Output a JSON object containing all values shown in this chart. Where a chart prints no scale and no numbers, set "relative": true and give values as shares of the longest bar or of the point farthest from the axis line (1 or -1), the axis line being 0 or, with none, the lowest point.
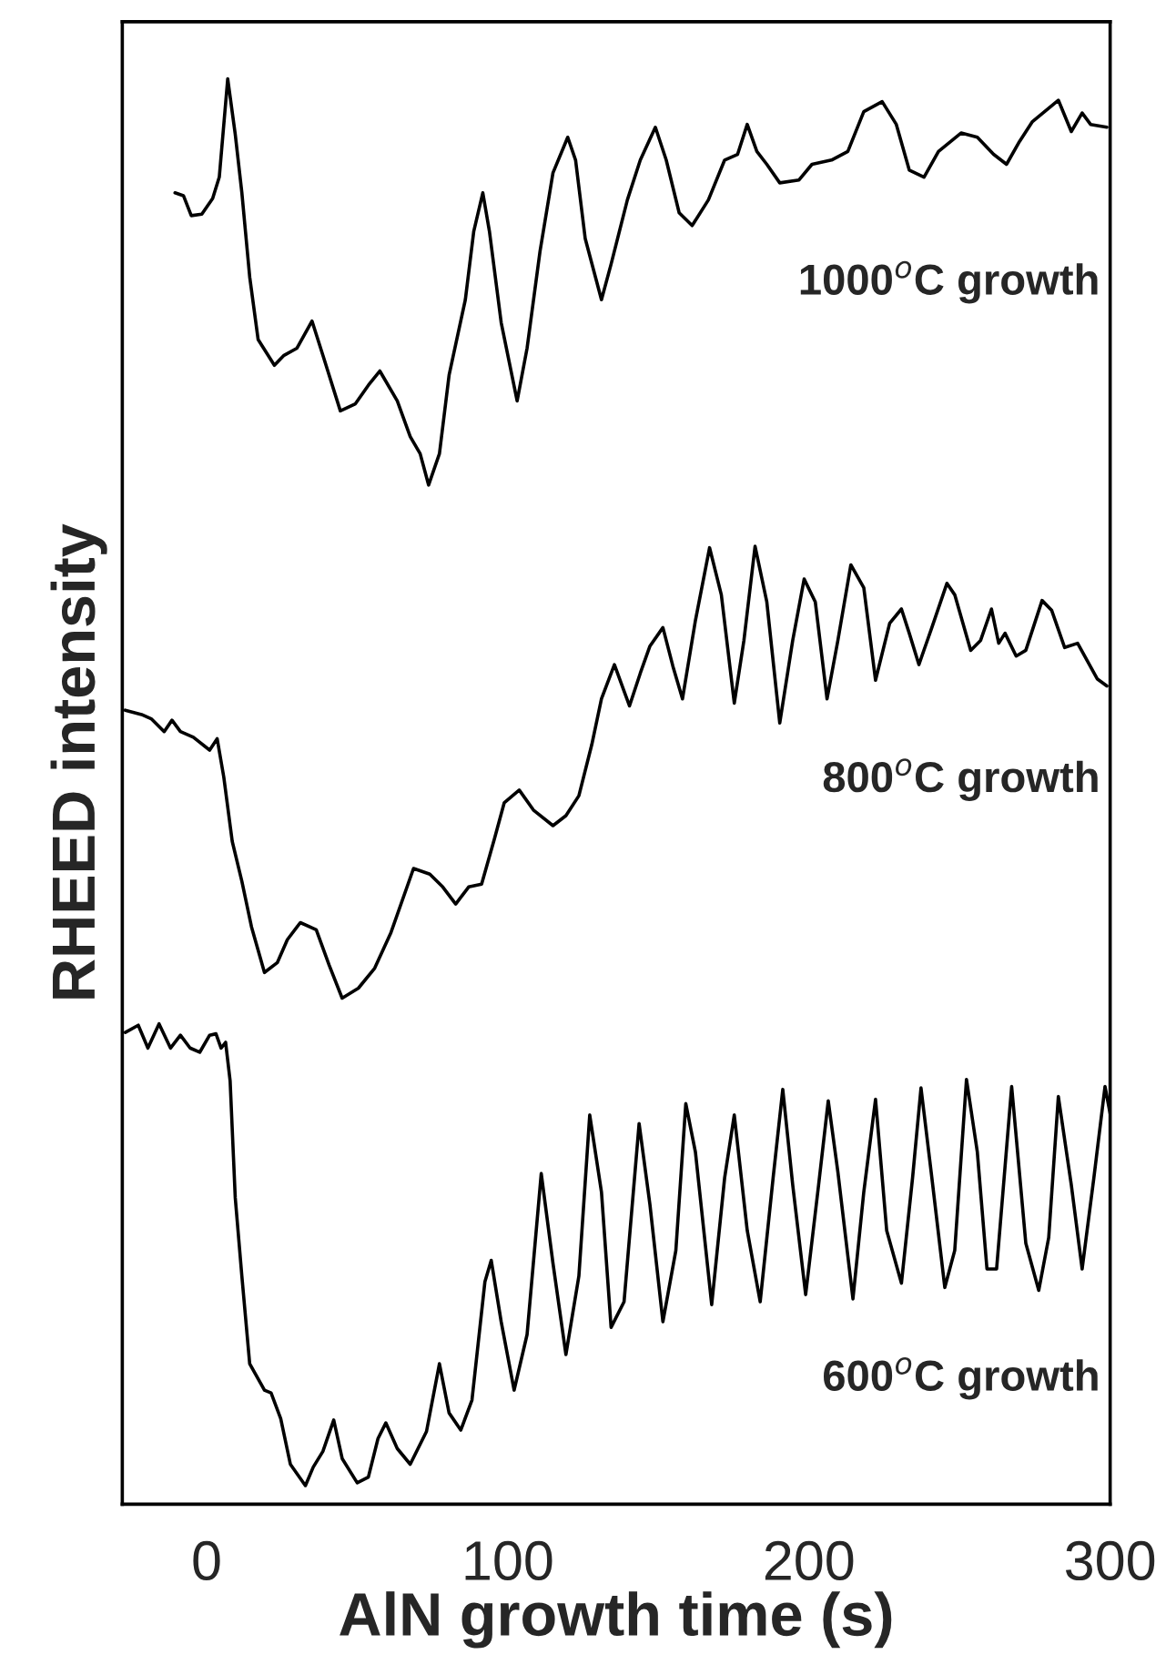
{
  "chart_data": {
    "type": "line",
    "relative": true,
    "xlabel": "AlN growth time (s)",
    "ylabel": "RHEED intensity",
    "xlim": [
      -28,
      300
    ],
    "xticks": [
      0,
      100,
      200,
      300
    ],
    "tick_labels": "x",
    "series": [
      {
        "name": "1000$^{o}$C growth",
        "color": "#000000",
        "x": [
          -10.5,
          -7.7,
          -5.1,
          -1.6,
          2.0,
          4.2,
          7.0,
          9.5,
          11.7,
          14.3,
          17.1,
          22.5,
          25.7,
          30.0,
          35.0,
          38.6,
          44.4,
          49.4,
          53.7,
          57.5,
          63.3,
          67.6,
          70.9,
          73.7,
          77.3,
          80.5,
          85.9,
          88.7,
          91.7,
          93.9,
          97.8,
          103.1,
          106.4,
          110.7,
          115.0,
          119.9,
          122.5,
          125.7,
          131.1,
          134.3,
          139.7,
          144.0,
          149.0,
          152.6,
          156.9,
          161.2,
          166.6,
          172.0,
          176.3,
          179.5,
          182.7,
          186.0,
          190.3,
          196.7,
          201.0,
          207.5,
          212.9,
          218.2,
          224.3,
          229.0,
          233.3,
          238.2,
          243.0,
          250.5,
          255.9,
          261.3,
          265.6,
          269.9,
          274.2,
          282.8,
          287.1,
          290.7,
          293.5,
          298.9
        ],
        "values": [
          0.92,
          0.918,
          0.904,
          0.905,
          0.916,
          0.931,
          1.0,
          0.961,
          0.92,
          0.861,
          0.817,
          0.799,
          0.806,
          0.811,
          0.83,
          0.806,
          0.767,
          0.772,
          0.785,
          0.795,
          0.774,
          0.749,
          0.737,
          0.715,
          0.737,
          0.792,
          0.845,
          0.893,
          0.92,
          0.893,
          0.829,
          0.774,
          0.811,
          0.879,
          0.934,
          0.959,
          0.943,
          0.888,
          0.845,
          0.87,
          0.915,
          0.943,
          0.966,
          0.943,
          0.906,
          0.897,
          0.915,
          0.943,
          0.947,
          0.968,
          0.949,
          0.94,
          0.927,
          0.929,
          0.94,
          0.943,
          0.949,
          0.977,
          0.984,
          0.968,
          0.936,
          0.931,
          0.949,
          0.962,
          0.959,
          0.947,
          0.94,
          0.956,
          0.97,
          0.985,
          0.963,
          0.976,
          0.968,
          0.966
        ]
      },
      {
        "name": "800$^{o}$C growth",
        "color": "#000000",
        "x": [
          -27.0,
          -21.6,
          -18.4,
          -14.1,
          -11.5,
          -8.7,
          -4.4,
          1.0,
          3.5,
          5.7,
          8.5,
          11.7,
          14.9,
          19.2,
          23.5,
          26.8,
          31.1,
          36.4,
          40.7,
          45.0,
          50.4,
          55.8,
          61.2,
          68.7,
          74.1,
          78.4,
          82.7,
          87.0,
          91.3,
          95.6,
          98.8,
          103.8,
          108.5,
          115.0,
          119.3,
          123.6,
          127.9,
          131.1,
          135.4,
          140.4,
          144.0,
          147.2,
          151.5,
          154.8,
          158.0,
          162.3,
          167.0,
          170.9,
          175.2,
          178.4,
          182.1,
          186.0,
          190.3,
          194.6,
          198.4,
          202.1,
          206.0,
          209.6,
          213.9,
          218.2,
          222.1,
          226.8,
          230.7,
          233.3,
          236.5,
          240.8,
          245.8,
          248.4,
          253.7,
          257.0,
          260.6,
          263.0,
          265.1,
          268.8,
          272.0,
          277.4,
          280.6,
          284.9,
          289.2,
          295.7,
          298.9
        ],
        "values": [
          0.557,
          0.554,
          0.551,
          0.542,
          0.55,
          0.542,
          0.538,
          0.529,
          0.537,
          0.51,
          0.465,
          0.437,
          0.405,
          0.373,
          0.38,
          0.396,
          0.408,
          0.403,
          0.378,
          0.355,
          0.362,
          0.376,
          0.401,
          0.446,
          0.442,
          0.433,
          0.421,
          0.433,
          0.435,
          0.467,
          0.492,
          0.501,
          0.487,
          0.476,
          0.483,
          0.497,
          0.533,
          0.565,
          0.589,
          0.56,
          0.583,
          0.602,
          0.615,
          0.588,
          0.565,
          0.62,
          0.671,
          0.638,
          0.562,
          0.606,
          0.672,
          0.633,
          0.548,
          0.606,
          0.649,
          0.633,
          0.565,
          0.606,
          0.659,
          0.643,
          0.578,
          0.618,
          0.628,
          0.611,
          0.589,
          0.615,
          0.646,
          0.638,
          0.599,
          0.606,
          0.628,
          0.604,
          0.611,
          0.595,
          0.599,
          0.634,
          0.627,
          0.601,
          0.604,
          0.579,
          0.574
        ]
      },
      {
        "name": "600$^{o}$C growth",
        "color": "#000000",
        "x": [
          -27.0,
          -22.7,
          -19.5,
          -15.8,
          -12.0,
          -8.7,
          -5.5,
          -2.3,
          1.0,
          3.1,
          4.8,
          6.3,
          7.8,
          9.5,
          11.7,
          14.3,
          19.2,
          21.4,
          24.6,
          27.8,
          32.8,
          35.4,
          38.6,
          42.2,
          45.0,
          50.0,
          53.7,
          56.9,
          59.5,
          63.3,
          67.6,
          73.0,
          77.3,
          80.5,
          84.4,
          88.1,
          92.4,
          94.5,
          97.8,
          102.1,
          106.4,
          111.1,
          115.0,
          119.3,
          123.6,
          127.2,
          131.1,
          134.3,
          138.6,
          143.6,
          147.2,
          151.5,
          155.8,
          159.1,
          162.3,
          167.7,
          172.0,
          175.2,
          179.5,
          183.8,
          188.1,
          191.3,
          194.6,
          198.9,
          203.2,
          206.4,
          209.6,
          214.6,
          218.2,
          222.1,
          225.8,
          230.7,
          234.4,
          237.2,
          240.8,
          245.1,
          248.4,
          252.3,
          255.9,
          259.1,
          262.3,
          267.3,
          272.0,
          276.3,
          279.6,
          282.8,
          287.1,
          290.7,
          294.6,
          298.3,
          300.0
        ],
        "values": [
          0.331,
          0.336,
          0.32,
          0.337,
          0.32,
          0.329,
          0.32,
          0.317,
          0.329,
          0.33,
          0.32,
          0.324,
          0.297,
          0.215,
          0.16,
          0.0985,
          0.08,
          0.078,
          0.06,
          0.028,
          0.013,
          0.026,
          0.037,
          0.059,
          0.032,
          0.015,
          0.019,
          0.046,
          0.057,
          0.039,
          0.028,
          0.051,
          0.0985,
          0.064,
          0.052,
          0.073,
          0.156,
          0.171,
          0.128,
          0.08,
          0.119,
          0.232,
          0.169,
          0.105,
          0.16,
          0.273,
          0.219,
          0.124,
          0.142,
          0.267,
          0.21,
          0.128,
          0.178,
          0.281,
          0.247,
          0.14,
          0.229,
          0.273,
          0.192,
          0.142,
          0.229,
          0.291,
          0.224,
          0.147,
          0.224,
          0.283,
          0.233,
          0.144,
          0.219,
          0.284,
          0.192,
          0.155,
          0.229,
          0.292,
          0.229,
          0.152,
          0.178,
          0.298,
          0.247,
          0.165,
          0.165,
          0.293,
          0.183,
          0.15,
          0.187,
          0.286,
          0.224,
          0.165,
          0.229,
          0.293,
          0.274
        ]
      }
    ]
  }
}
